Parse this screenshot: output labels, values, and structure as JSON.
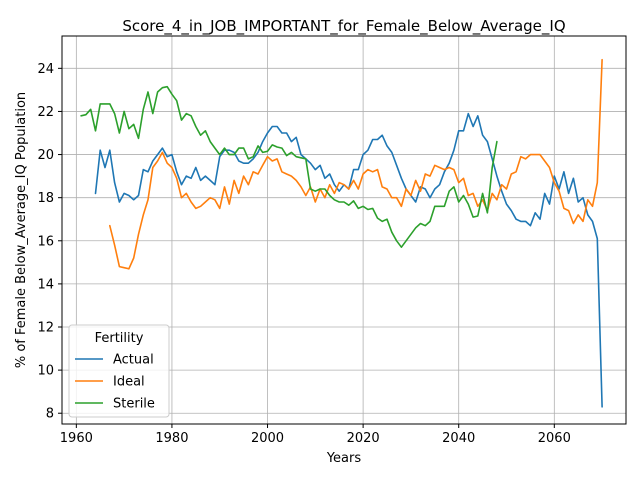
{
  "chart_data": {
    "type": "line",
    "title": "Score_4_in_JOB_IMPORTANT_for_Female_Below_Average_IQ",
    "xlabel": "Years",
    "ylabel": "% of Female Below_Average_IQ Population",
    "xlim": [
      1957,
      2075
    ],
    "ylim": [
      7.5,
      25.5
    ],
    "xticks": [
      1960,
      1980,
      2000,
      2020,
      2040,
      2060
    ],
    "yticks": [
      8,
      10,
      12,
      14,
      16,
      18,
      20,
      22,
      24
    ],
    "grid": true,
    "legend": {
      "title": "Fertility",
      "placement": "lower-left"
    },
    "series": [
      {
        "name": "Actual",
        "color": "#1f77b4",
        "x": [
          1964,
          1965,
          1966,
          1967,
          1968,
          1969,
          1970,
          1971,
          1972,
          1973,
          1974,
          1975,
          1976,
          1977,
          1978,
          1979,
          1980,
          1981,
          1982,
          1983,
          1984,
          1985,
          1986,
          1987,
          1988,
          1989,
          1990,
          1991,
          1992,
          1993,
          1994,
          1995,
          1996,
          1997,
          1998,
          1999,
          2000,
          2001,
          2002,
          2003,
          2004,
          2005,
          2006,
          2007,
          2008,
          2009,
          2010,
          2011,
          2012,
          2013,
          2014,
          2015,
          2016,
          2017,
          2018,
          2019,
          2020,
          2021,
          2022,
          2023,
          2024,
          2025,
          2026,
          2027,
          2028,
          2029,
          2030,
          2031,
          2032,
          2033,
          2034,
          2035,
          2036,
          2037,
          2038,
          2039,
          2040,
          2041,
          2042,
          2043,
          2044,
          2045,
          2046,
          2047,
          2048,
          2049,
          2050,
          2051,
          2052,
          2053,
          2054,
          2055,
          2056,
          2057,
          2058,
          2059,
          2060,
          2061,
          2062,
          2063,
          2064,
          2065,
          2066,
          2067,
          2068,
          2069,
          2070
        ],
        "y": [
          18.2,
          20.2,
          19.4,
          20.2,
          18.7,
          17.8,
          18.2,
          18.1,
          17.9,
          18.1,
          19.3,
          19.2,
          19.7,
          20.0,
          20.3,
          19.9,
          20.0,
          19.2,
          18.6,
          19.0,
          18.9,
          19.4,
          18.8,
          19.0,
          18.8,
          18.6,
          19.9,
          20.2,
          20.2,
          20.1,
          19.7,
          19.6,
          19.6,
          19.8,
          20.1,
          20.6,
          21.0,
          21.3,
          21.3,
          21.0,
          21.0,
          20.6,
          20.8,
          20.0,
          19.8,
          19.6,
          19.3,
          19.5,
          18.9,
          19.1,
          18.6,
          18.3,
          18.6,
          18.4,
          19.3,
          19.3,
          20.0,
          20.2,
          20.7,
          20.7,
          20.9,
          20.4,
          20.1,
          19.5,
          18.9,
          18.4,
          18.1,
          17.8,
          18.5,
          18.4,
          18.0,
          18.4,
          18.6,
          19.2,
          19.6,
          20.2,
          21.1,
          21.1,
          21.9,
          21.3,
          21.8,
          20.9,
          20.6,
          19.8,
          19.0,
          18.3,
          17.7,
          17.4,
          17.0,
          16.9,
          16.9,
          16.7,
          17.3,
          17.0,
          18.2,
          17.7,
          19.0,
          18.4,
          19.2,
          18.2,
          18.9,
          17.8,
          18.0,
          17.2,
          16.9,
          16.1,
          8.3
        ]
      },
      {
        "name": "Ideal",
        "color": "#ff7f0e",
        "x": [
          1967,
          1968,
          1969,
          1970,
          1971,
          1972,
          1973,
          1974,
          1975,
          1976,
          1977,
          1978,
          1979,
          1980,
          1981,
          1982,
          1983,
          1984,
          1985,
          1986,
          1987,
          1988,
          1989,
          1990,
          1991,
          1992,
          1993,
          1994,
          1995,
          1996,
          1997,
          1998,
          1999,
          2000,
          2001,
          2002,
          2003,
          2004,
          2005,
          2006,
          2007,
          2008,
          2009,
          2010,
          2011,
          2012,
          2013,
          2014,
          2015,
          2016,
          2017,
          2018,
          2019,
          2020,
          2021,
          2022,
          2023,
          2024,
          2025,
          2026,
          2027,
          2028,
          2029,
          2030,
          2031,
          2032,
          2033,
          2034,
          2035,
          2036,
          2037,
          2038,
          2039,
          2040,
          2041,
          2042,
          2043,
          2044,
          2045,
          2046,
          2047,
          2048,
          2049,
          2050,
          2051,
          2052,
          2053,
          2054,
          2055,
          2056,
          2057,
          2058,
          2059,
          2060,
          2061,
          2062,
          2063,
          2064,
          2065,
          2066,
          2067,
          2068,
          2069,
          2070
        ],
        "y": [
          16.7,
          15.8,
          14.8,
          14.75,
          14.7,
          15.2,
          16.3,
          17.2,
          17.9,
          19.4,
          19.7,
          20.1,
          19.6,
          19.4,
          18.9,
          18.0,
          18.2,
          17.8,
          17.5,
          17.6,
          17.8,
          18.0,
          17.9,
          17.5,
          18.5,
          17.7,
          18.8,
          18.2,
          19.0,
          18.6,
          19.2,
          19.1,
          19.5,
          19.9,
          19.7,
          19.8,
          19.2,
          19.1,
          19.0,
          18.8,
          18.5,
          18.1,
          18.5,
          17.8,
          18.4,
          18.0,
          18.6,
          18.2,
          18.7,
          18.6,
          18.4,
          18.8,
          18.4,
          19.1,
          19.3,
          19.2,
          19.3,
          18.5,
          18.4,
          18.0,
          18.0,
          17.6,
          18.4,
          18.1,
          18.8,
          18.3,
          19.1,
          19.0,
          19.5,
          19.4,
          19.3,
          19.4,
          19.3,
          18.7,
          18.9,
          18.1,
          18.2,
          17.6,
          17.9,
          17.4,
          18.2,
          17.9,
          18.6,
          18.4,
          19.1,
          19.2,
          19.9,
          19.8,
          20.0,
          20.0,
          20.0,
          19.7,
          19.4,
          18.7,
          18.3,
          17.5,
          17.4,
          16.8,
          17.2,
          16.9,
          17.9,
          17.6,
          18.7,
          24.4
        ]
      },
      {
        "name": "Sterile",
        "color": "#2ca02c",
        "x": [
          1961,
          1962,
          1963,
          1964,
          1965,
          1966,
          1967,
          1968,
          1969,
          1970,
          1971,
          1972,
          1973,
          1974,
          1975,
          1976,
          1977,
          1978,
          1979,
          1980,
          1981,
          1982,
          1983,
          1984,
          1985,
          1986,
          1987,
          1988,
          1989,
          1990,
          1991,
          1992,
          1993,
          1994,
          1995,
          1996,
          1997,
          1998,
          1999,
          2000,
          2001,
          2002,
          2003,
          2004,
          2005,
          2006,
          2007,
          2008,
          2009,
          2010,
          2011,
          2012,
          2013,
          2014,
          2015,
          2016,
          2017,
          2018,
          2019,
          2020,
          2021,
          2022,
          2023,
          2024,
          2025,
          2026,
          2027,
          2028,
          2029,
          2030,
          2031,
          2032,
          2033,
          2034,
          2035,
          2036,
          2037,
          2038,
          2039,
          2040,
          2041,
          2042,
          2043,
          2044,
          2045,
          2046,
          2047,
          2048
        ],
        "y": [
          21.8,
          21.85,
          22.1,
          21.1,
          22.35,
          22.35,
          22.35,
          21.9,
          21.0,
          22.0,
          21.2,
          21.4,
          20.75,
          22.1,
          22.9,
          21.9,
          22.9,
          23.1,
          23.15,
          22.8,
          22.5,
          21.6,
          21.9,
          21.8,
          21.3,
          20.9,
          21.1,
          20.6,
          20.3,
          20.0,
          20.3,
          20.0,
          20.0,
          20.3,
          20.3,
          19.8,
          19.9,
          20.4,
          20.1,
          20.15,
          20.45,
          20.35,
          20.3,
          19.95,
          20.1,
          19.9,
          19.85,
          19.8,
          18.4,
          18.3,
          18.4,
          18.4,
          18.1,
          17.9,
          17.8,
          17.8,
          17.65,
          17.85,
          17.5,
          17.6,
          17.45,
          17.5,
          17.05,
          16.9,
          17.0,
          16.4,
          16.0,
          15.7,
          16.0,
          16.3,
          16.6,
          16.8,
          16.7,
          16.9,
          17.6,
          17.6,
          17.6,
          18.3,
          18.5,
          17.8,
          18.1,
          17.7,
          17.1,
          17.15,
          18.2,
          17.3,
          19.4,
          20.6
        ]
      }
    ]
  }
}
